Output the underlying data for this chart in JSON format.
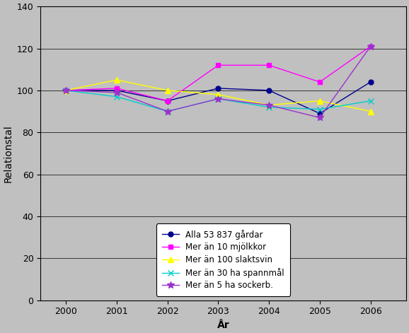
{
  "years": [
    2000,
    2001,
    2002,
    2003,
    2004,
    2005,
    2006
  ],
  "series": [
    {
      "label": "Alla 53 837 gårdar",
      "color": "#00008B",
      "marker": "o",
      "markersize": 5,
      "values": [
        100,
        100,
        95,
        101,
        100,
        89,
        104
      ]
    },
    {
      "label": "Mer än 10 mjölkkor",
      "color": "#FF00FF",
      "marker": "s",
      "markersize": 5,
      "values": [
        100,
        101,
        95,
        112,
        112,
        104,
        121
      ]
    },
    {
      "label": "Mer än 100 slaktsvin",
      "color": "#FFFF00",
      "marker": "^",
      "markersize": 6,
      "values": [
        100,
        105,
        100,
        98,
        93,
        95,
        90
      ]
    },
    {
      "label": "Mer än 30 ha spannmål",
      "color": "#00CCCC",
      "marker": "x",
      "markersize": 6,
      "values": [
        100,
        97,
        90,
        96,
        92,
        91,
        95
      ]
    },
    {
      "label": "Mer än 5 ha sockerb.",
      "color": "#9933CC",
      "marker": "*",
      "markersize": 7,
      "values": [
        100,
        99,
        90,
        96,
        93,
        87,
        121
      ]
    }
  ],
  "xlabel": "År",
  "ylabel": "Relationstal",
  "ylim": [
    0,
    140
  ],
  "yticks": [
    0,
    20,
    40,
    60,
    80,
    100,
    120,
    140
  ],
  "xlim_left": 1999.5,
  "xlim_right": 2006.7,
  "background_color": "#C0C0C0",
  "plot_background_color": "#C0C0C0",
  "grid_color": "#000000",
  "figsize": [
    5.78,
    4.71
  ],
  "dpi": 100
}
